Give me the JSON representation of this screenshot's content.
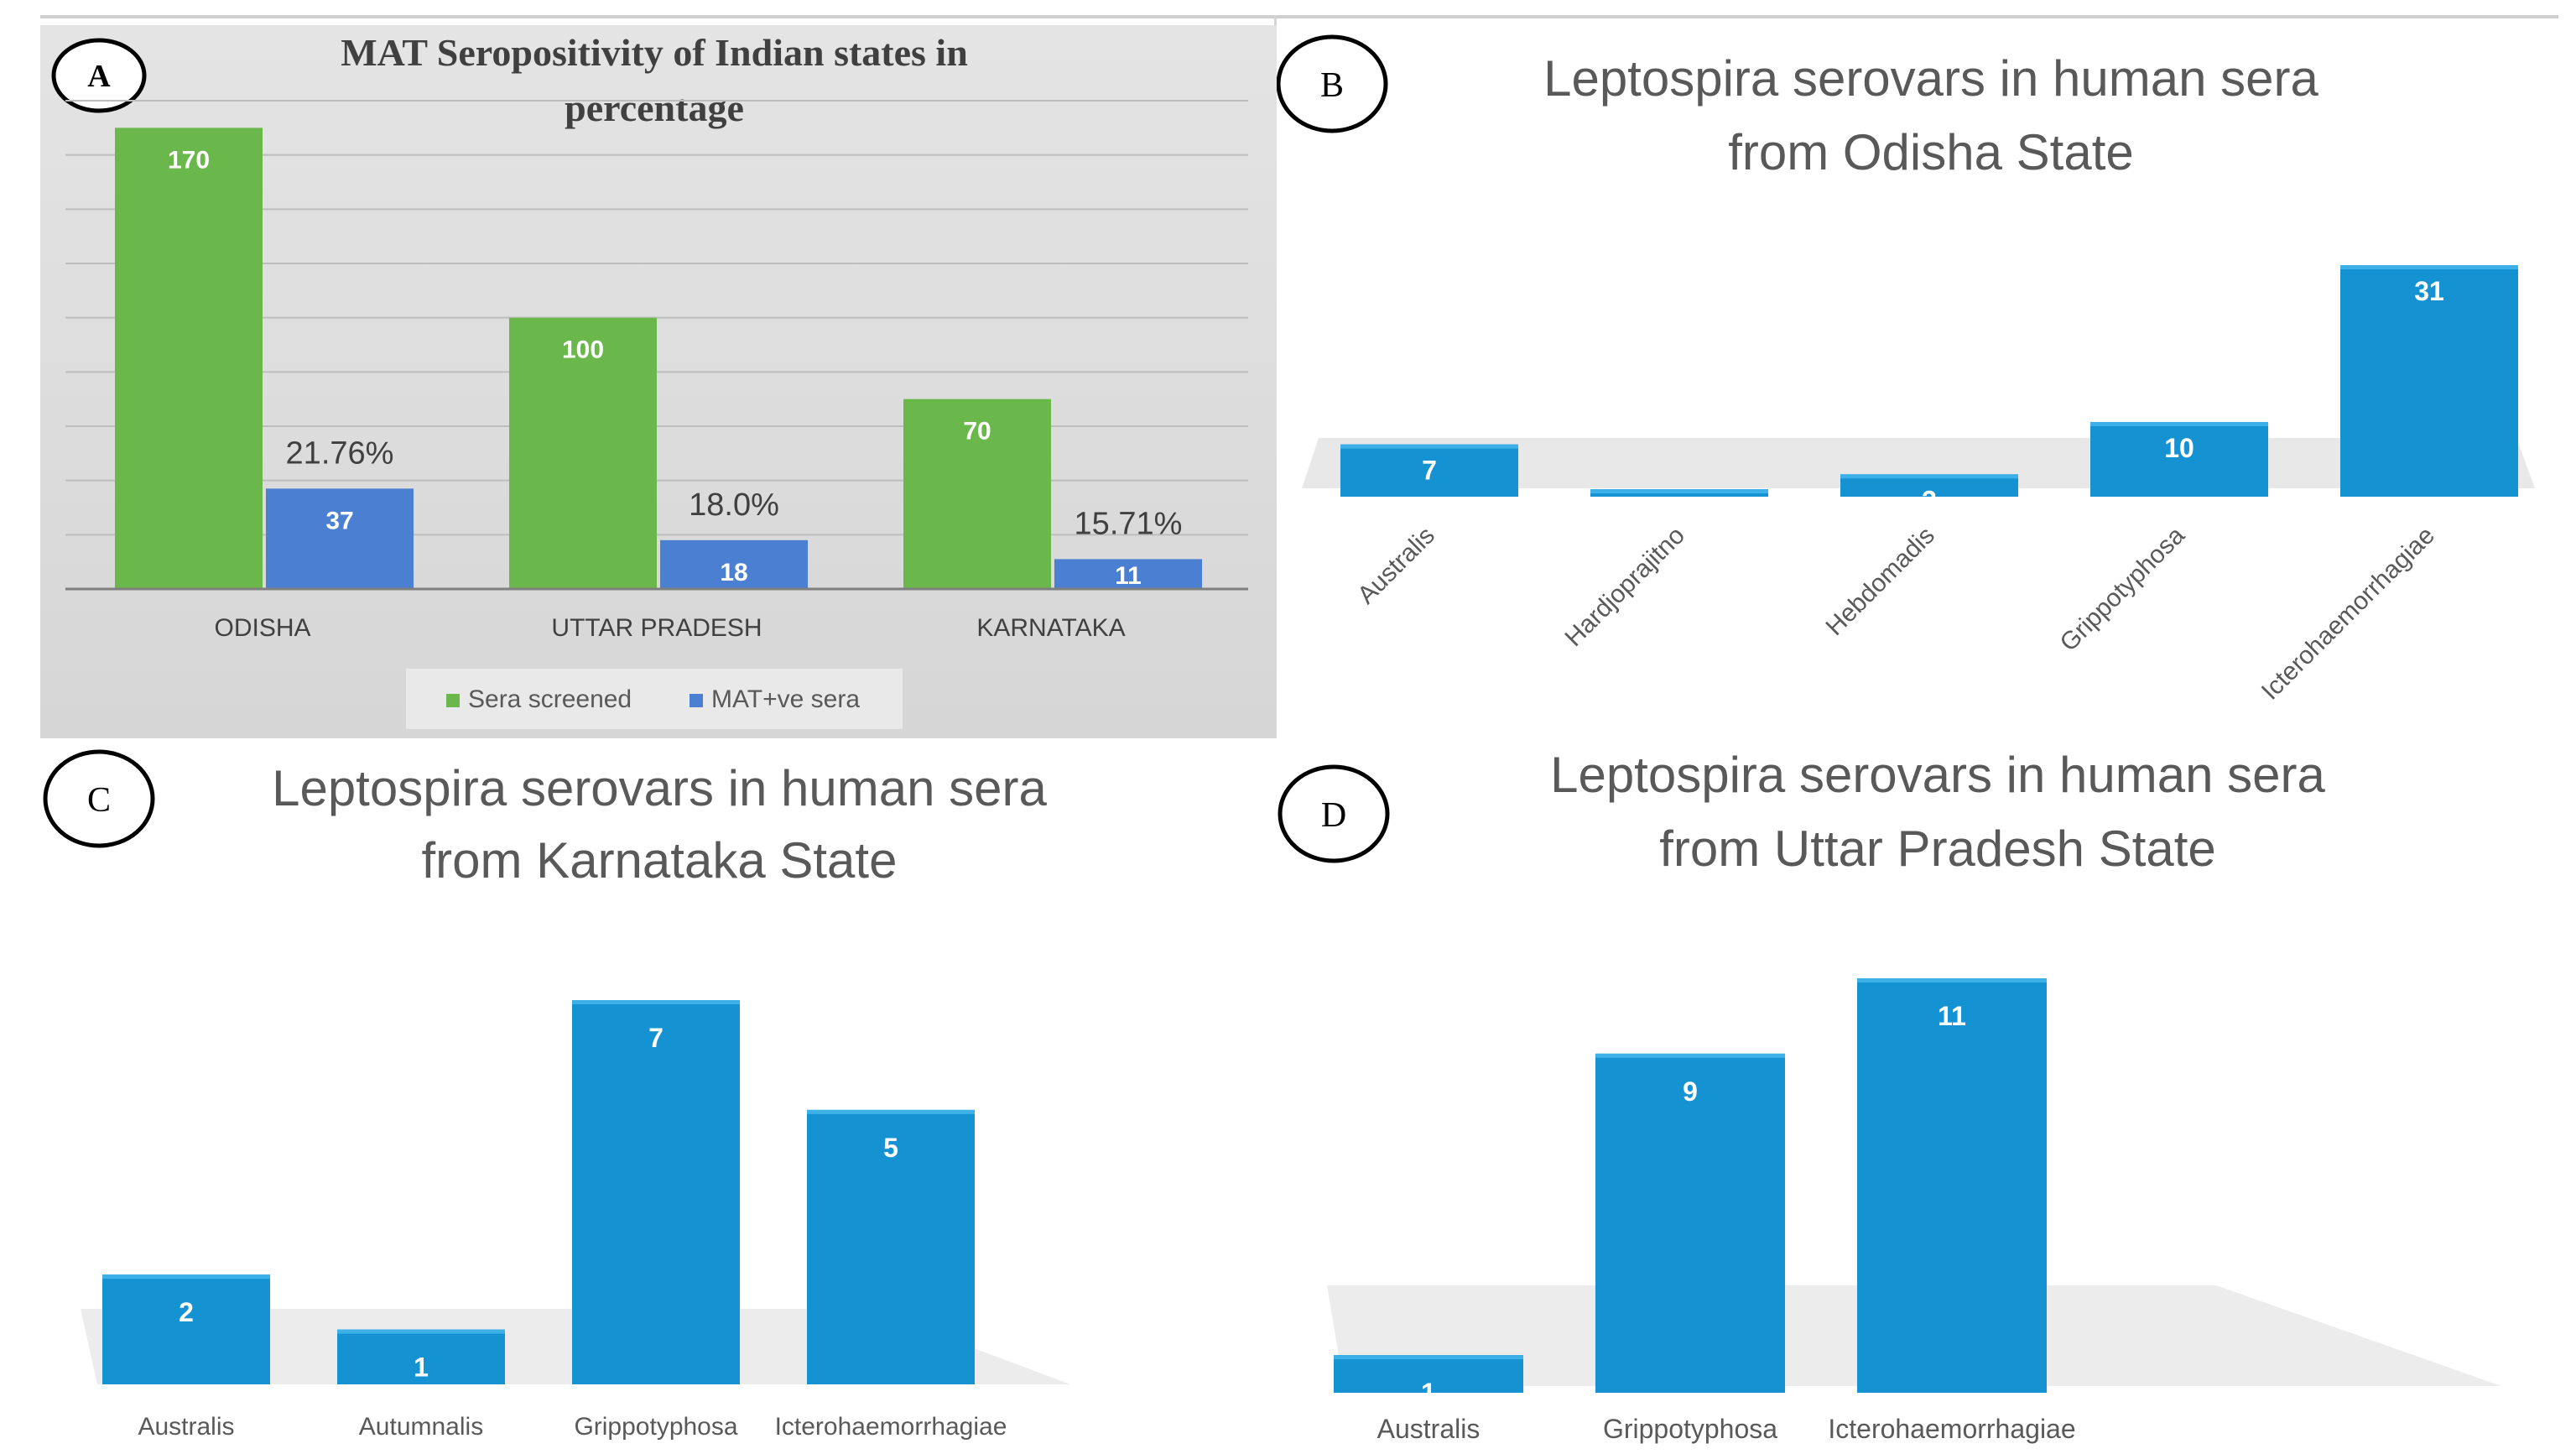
{
  "panels": {
    "a": {
      "label": "A"
    },
    "b": {
      "label": "B"
    },
    "c": {
      "label": "C"
    },
    "d": {
      "label": "D"
    }
  },
  "colors": {
    "green": "#6ab84c",
    "blue_grouped": "#4a7fd1",
    "blue": "#1592d2",
    "text_dark": "#404040",
    "text_light": "#595959"
  },
  "chart_data": [
    {
      "id": "a",
      "type": "bar",
      "title_line1": "MAT Seropositivity of Indian states in",
      "title_line2": "percentage",
      "categories": [
        "ODISHA",
        "UTTAR PRADESH",
        "KARNATAKA"
      ],
      "series": [
        {
          "name": "Sera screened",
          "values": [
            170,
            100,
            70
          ],
          "color": "#6ab84c"
        },
        {
          "name": "MAT+ve sera",
          "values": [
            37,
            18,
            11
          ],
          "color": "#4a7fd1"
        }
      ],
      "annotations": [
        "21.76%",
        "18.0%",
        "15.71%"
      ],
      "ylim": [
        0,
        180
      ],
      "grid": true,
      "legend": "bottom"
    },
    {
      "id": "b",
      "type": "bar",
      "title_line1": "Leptospira serovars in human sera",
      "title_line2": "from Odisha State",
      "categories": [
        "Australis",
        "Hardjoprajitno",
        "Hebdomadis",
        "Grippotyphosa",
        "Icterohaemorrhagiae"
      ],
      "values": [
        7,
        1,
        3,
        10,
        31
      ],
      "ylim": [
        0,
        31
      ]
    },
    {
      "id": "c",
      "type": "bar",
      "title_line1": "Leptospira serovars in human sera",
      "title_line2": "from Karnataka State",
      "categories": [
        "Australis",
        "Autumnalis",
        "Grippotyphosa",
        "Icterohaemorrhagiae"
      ],
      "values": [
        2,
        1,
        7,
        5
      ],
      "ylim": [
        0,
        7
      ]
    },
    {
      "id": "d",
      "type": "bar",
      "title_line1": "Leptospira serovars in human sera",
      "title_line2": "from Uttar Pradesh State",
      "categories": [
        "Australis",
        "Grippotyphosa",
        "Icterohaemorrhagiae"
      ],
      "values": [
        1,
        9,
        11
      ],
      "ylim": [
        0,
        11
      ]
    }
  ]
}
